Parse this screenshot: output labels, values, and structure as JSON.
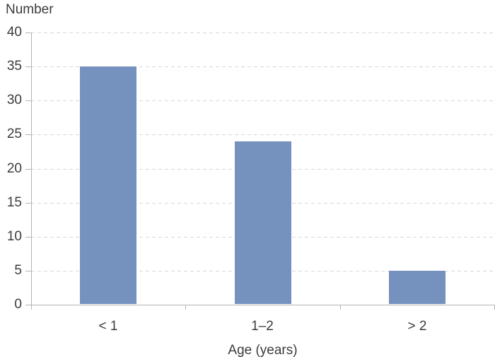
{
  "chart_data": {
    "type": "bar",
    "title": "",
    "ylabel": "Number",
    "xlabel": "Age (years)",
    "categories": [
      "< 1",
      "1–2",
      "> 2"
    ],
    "values": [
      35,
      24,
      5
    ],
    "ylim": [
      0,
      40
    ],
    "yticks": [
      0,
      5,
      10,
      15,
      20,
      25,
      30,
      35,
      40
    ],
    "grid": "horizontal-dashed",
    "legend": "none",
    "colors": {
      "bar": "#7591bd",
      "axis": "#b3b3b3",
      "grid": "#d8d8d8",
      "text": "#3c3c3c",
      "background": "#ffffff"
    }
  }
}
